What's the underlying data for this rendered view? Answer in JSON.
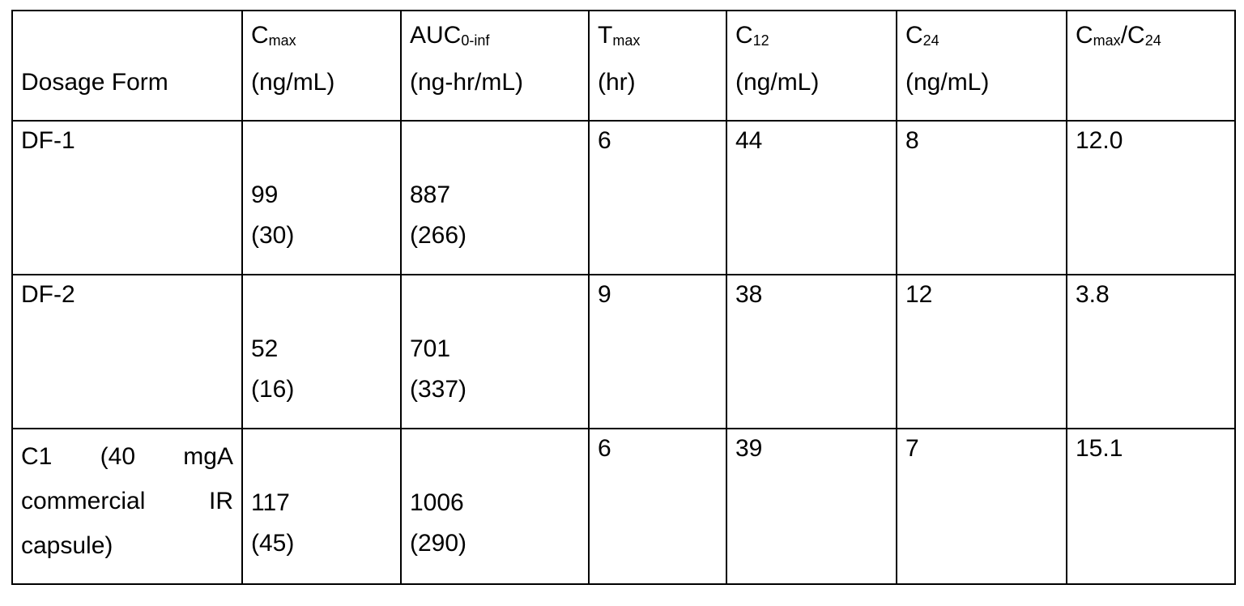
{
  "table": {
    "headers": [
      {
        "main": "Dosage Form",
        "sub": "",
        "rest": "",
        "unit": ""
      },
      {
        "main": "C",
        "sub": "max",
        "rest": "",
        "unit": "(ng/mL)"
      },
      {
        "main": "AUC",
        "sub": "0-inf",
        "rest": "",
        "unit": "(ng-hr/mL)"
      },
      {
        "main": "T",
        "sub": "max",
        "rest": "",
        "unit": "(hr)"
      },
      {
        "main": "C",
        "sub": "12",
        "rest": "",
        "unit": "(ng/mL)"
      },
      {
        "main": "C",
        "sub": "24",
        "rest": "",
        "unit": "(ng/mL)"
      },
      {
        "main": "C",
        "sub": "max",
        "rest": "/C",
        "sub2": "24",
        "unit": ""
      }
    ],
    "rows": [
      {
        "dosage_form_lines": [
          "DF-1"
        ],
        "cmax": "99",
        "cmax_sd": "(30)",
        "auc": "887",
        "auc_sd": "(266)",
        "tmax": "6",
        "c12": "44",
        "c24": "8",
        "ratio": "12.0"
      },
      {
        "dosage_form_lines": [
          "DF-2"
        ],
        "cmax": "52",
        "cmax_sd": "(16)",
        "auc": "701",
        "auc_sd": "(337)",
        "tmax": "9",
        "c12": "38",
        "c24": "12",
        "ratio": "3.8"
      },
      {
        "dosage_form_lines": [
          "C1 (40 mgA",
          "commercial IR",
          "capsule)"
        ],
        "cmax": "117",
        "cmax_sd": "(45)",
        "auc": "1006",
        "auc_sd": "(290)",
        "tmax": "6",
        "c12": "39",
        "c24": "7",
        "ratio": "15.1"
      }
    ]
  }
}
